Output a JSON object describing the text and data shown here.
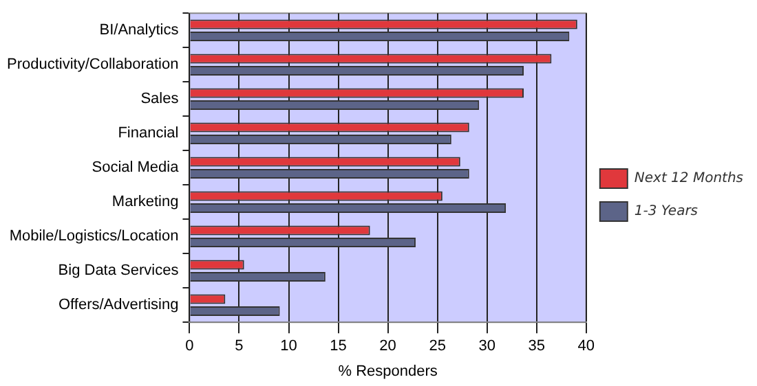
{
  "chart_data": {
    "type": "bar",
    "orientation": "horizontal",
    "xlabel": "% Responders",
    "categories": [
      "BI/Analytics",
      "Productivity/Collaboration",
      "Sales",
      "Financial",
      "Social Media",
      "Marketing",
      "Mobile/Logistics/Location",
      "Big Data Services",
      "Offers/Advertising"
    ],
    "series": [
      {
        "name": "Next 12 Months",
        "color": "#e0383c",
        "values": [
          39.1,
          36.5,
          33.7,
          28.2,
          27.3,
          25.5,
          18.2,
          5.5,
          3.6
        ]
      },
      {
        "name": "1-3 Years",
        "color": "#5c6488",
        "values": [
          38.3,
          33.7,
          29.2,
          26.4,
          28.2,
          31.9,
          22.8,
          13.7,
          9.1
        ]
      }
    ],
    "xlim": [
      0,
      40
    ],
    "xticks": [
      0,
      5,
      10,
      15,
      20,
      25,
      30,
      35,
      40
    ],
    "grid": "x",
    "legend": "right"
  }
}
